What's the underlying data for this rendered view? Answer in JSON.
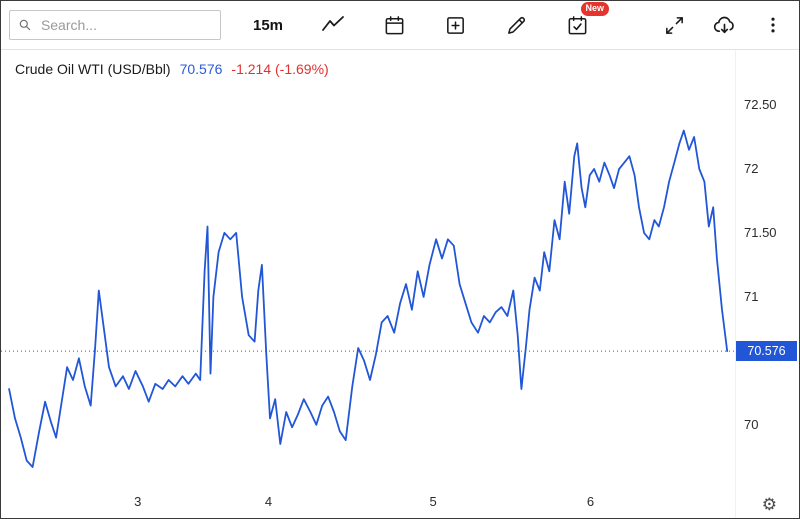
{
  "toolbar": {
    "search_placeholder": "Search...",
    "interval_label": "15m",
    "new_badge": "New"
  },
  "icons": {
    "settings_gear": "⚙"
  },
  "symbol": {
    "title": "Crude Oil WTI (USD/Bbl)",
    "last_price": "70.576",
    "change": "-1.214 (-1.69%)"
  },
  "colors": {
    "accent_blue": "#2a5cd6",
    "negative_red": "#e03131"
  },
  "chart_data": {
    "type": "line",
    "title": "Crude Oil WTI (USD/Bbl)",
    "interval": "15m",
    "last_price": 70.576,
    "change": -1.214,
    "change_pct": -1.69,
    "line_color": "#2157d6",
    "grid": false,
    "ylim": [
      69.49,
      72.93
    ],
    "xlabel": "",
    "ylabel": "USD/Bbl",
    "y_ticks": [
      {
        "label": "72.50",
        "value": 72.5
      },
      {
        "label": "72",
        "value": 72.0
      },
      {
        "label": "71.50",
        "value": 71.5
      },
      {
        "label": "71",
        "value": 71.0
      },
      {
        "label": "70",
        "value": 70.0
      }
    ],
    "x_ticks": [
      {
        "label": "3",
        "pos": 0.186
      },
      {
        "label": "4",
        "pos": 0.364
      },
      {
        "label": "5",
        "pos": 0.588
      },
      {
        "label": "6",
        "pos": 0.802
      }
    ],
    "current_price": {
      "value": 70.576,
      "label": "70.576"
    },
    "points": [
      [
        0.011,
        70.28
      ],
      [
        0.019,
        70.05
      ],
      [
        0.027,
        69.9
      ],
      [
        0.035,
        69.72
      ],
      [
        0.043,
        69.67
      ],
      [
        0.052,
        69.95
      ],
      [
        0.06,
        70.18
      ],
      [
        0.068,
        70.02
      ],
      [
        0.075,
        69.9
      ],
      [
        0.081,
        70.12
      ],
      [
        0.09,
        70.45
      ],
      [
        0.098,
        70.35
      ],
      [
        0.106,
        70.52
      ],
      [
        0.114,
        70.3
      ],
      [
        0.122,
        70.15
      ],
      [
        0.128,
        70.6
      ],
      [
        0.133,
        71.05
      ],
      [
        0.14,
        70.75
      ],
      [
        0.147,
        70.45
      ],
      [
        0.156,
        70.3
      ],
      [
        0.166,
        70.38
      ],
      [
        0.174,
        70.28
      ],
      [
        0.183,
        70.42
      ],
      [
        0.193,
        70.3
      ],
      [
        0.201,
        70.18
      ],
      [
        0.21,
        70.32
      ],
      [
        0.22,
        70.28
      ],
      [
        0.228,
        70.35
      ],
      [
        0.237,
        70.3
      ],
      [
        0.247,
        70.38
      ],
      [
        0.255,
        70.32
      ],
      [
        0.265,
        70.4
      ],
      [
        0.271,
        70.35
      ],
      [
        0.277,
        71.2
      ],
      [
        0.281,
        71.55
      ],
      [
        0.285,
        70.4
      ],
      [
        0.289,
        71.0
      ],
      [
        0.296,
        71.35
      ],
      [
        0.304,
        71.5
      ],
      [
        0.312,
        71.45
      ],
      [
        0.32,
        71.5
      ],
      [
        0.328,
        71.0
      ],
      [
        0.337,
        70.7
      ],
      [
        0.345,
        70.65
      ],
      [
        0.35,
        71.05
      ],
      [
        0.355,
        71.25
      ],
      [
        0.361,
        70.55
      ],
      [
        0.366,
        70.05
      ],
      [
        0.373,
        70.2
      ],
      [
        0.38,
        69.85
      ],
      [
        0.388,
        70.1
      ],
      [
        0.396,
        69.98
      ],
      [
        0.404,
        70.08
      ],
      [
        0.412,
        70.2
      ],
      [
        0.421,
        70.1
      ],
      [
        0.429,
        70.0
      ],
      [
        0.437,
        70.15
      ],
      [
        0.445,
        70.22
      ],
      [
        0.453,
        70.1
      ],
      [
        0.461,
        69.95
      ],
      [
        0.469,
        69.88
      ],
      [
        0.478,
        70.3
      ],
      [
        0.486,
        70.6
      ],
      [
        0.494,
        70.5
      ],
      [
        0.502,
        70.35
      ],
      [
        0.51,
        70.55
      ],
      [
        0.518,
        70.8
      ],
      [
        0.526,
        70.85
      ],
      [
        0.535,
        70.72
      ],
      [
        0.543,
        70.95
      ],
      [
        0.551,
        71.1
      ],
      [
        0.559,
        70.9
      ],
      [
        0.567,
        71.2
      ],
      [
        0.575,
        71.0
      ],
      [
        0.583,
        71.25
      ],
      [
        0.592,
        71.45
      ],
      [
        0.6,
        71.3
      ],
      [
        0.608,
        71.45
      ],
      [
        0.616,
        71.4
      ],
      [
        0.624,
        71.1
      ],
      [
        0.632,
        70.95
      ],
      [
        0.64,
        70.8
      ],
      [
        0.649,
        70.72
      ],
      [
        0.657,
        70.85
      ],
      [
        0.665,
        70.8
      ],
      [
        0.673,
        70.88
      ],
      [
        0.681,
        70.92
      ],
      [
        0.689,
        70.85
      ],
      [
        0.697,
        71.05
      ],
      [
        0.703,
        70.7
      ],
      [
        0.708,
        70.28
      ],
      [
        0.714,
        70.6
      ],
      [
        0.719,
        70.9
      ],
      [
        0.726,
        71.15
      ],
      [
        0.733,
        71.05
      ],
      [
        0.739,
        71.35
      ],
      [
        0.746,
        71.2
      ],
      [
        0.753,
        71.6
      ],
      [
        0.76,
        71.45
      ],
      [
        0.767,
        71.9
      ],
      [
        0.773,
        71.65
      ],
      [
        0.78,
        72.1
      ],
      [
        0.784,
        72.2
      ],
      [
        0.79,
        71.85
      ],
      [
        0.795,
        71.7
      ],
      [
        0.801,
        71.95
      ],
      [
        0.807,
        72.0
      ],
      [
        0.814,
        71.9
      ],
      [
        0.821,
        72.05
      ],
      [
        0.828,
        71.95
      ],
      [
        0.834,
        71.85
      ],
      [
        0.841,
        72.0
      ],
      [
        0.848,
        72.05
      ],
      [
        0.855,
        72.1
      ],
      [
        0.862,
        71.95
      ],
      [
        0.868,
        71.7
      ],
      [
        0.875,
        71.5
      ],
      [
        0.882,
        71.45
      ],
      [
        0.889,
        71.6
      ],
      [
        0.895,
        71.55
      ],
      [
        0.902,
        71.7
      ],
      [
        0.909,
        71.9
      ],
      [
        0.916,
        72.05
      ],
      [
        0.923,
        72.2
      ],
      [
        0.929,
        72.3
      ],
      [
        0.936,
        72.15
      ],
      [
        0.943,
        72.25
      ],
      [
        0.95,
        72.0
      ],
      [
        0.957,
        71.9
      ],
      [
        0.963,
        71.55
      ],
      [
        0.969,
        71.7
      ],
      [
        0.974,
        71.3
      ],
      [
        0.981,
        70.9
      ],
      [
        0.988,
        70.576
      ]
    ]
  }
}
